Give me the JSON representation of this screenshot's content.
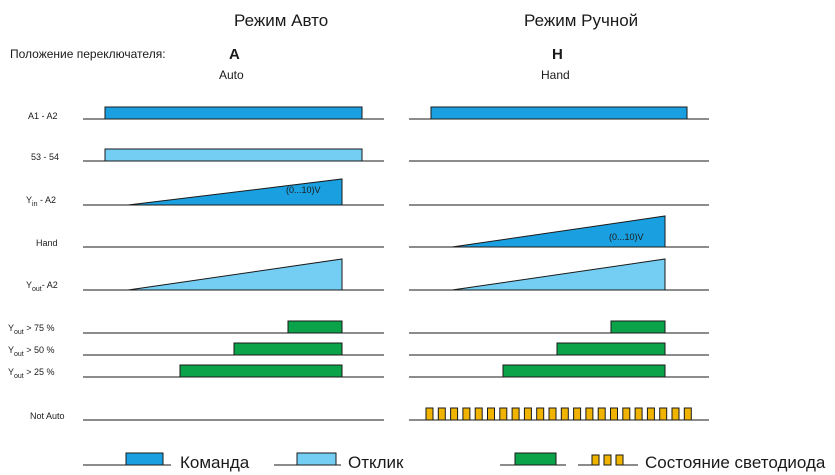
{
  "header": {
    "mode_auto": "Режим Авто",
    "mode_manual": "Режим Ручной",
    "switch_position_label": "Положение переключателя:",
    "auto_letter": "A",
    "auto_word": "Auto",
    "hand_letter": "H",
    "hand_word": "Hand"
  },
  "rows": [
    {
      "id": "a1a2",
      "label": "A1 - A2"
    },
    {
      "id": "5354",
      "label": "53 - 54"
    },
    {
      "id": "yin",
      "label_main": "Y",
      "label_sub": "in",
      "label_rest": " - A2",
      "range": "(0...10)V"
    },
    {
      "id": "hand",
      "label": "Hand",
      "range": "(0...10)V"
    },
    {
      "id": "yout",
      "label_main": "Y",
      "label_sub": "out",
      "label_rest": "- A2"
    },
    {
      "id": "yout75",
      "label_main": "Y",
      "label_sub": "out",
      "label_rest": " > 75 %"
    },
    {
      "id": "yout50",
      "label_main": "Y",
      "label_sub": "out",
      "label_rest": " > 50 %"
    },
    {
      "id": "yout25",
      "label_main": "Y",
      "label_sub": "out",
      "label_rest": " > 25 %"
    },
    {
      "id": "notauto",
      "label": "Not Auto"
    }
  ],
  "legend": {
    "command": "Команда",
    "response": "Отклик",
    "led_state": "Состояние светодиода"
  },
  "colors": {
    "command": "#1aa0e0",
    "response": "#74cdf3",
    "output_green": "#0aa34a",
    "led_yellow": "#f0b400",
    "line": "#1a1a1a"
  }
}
